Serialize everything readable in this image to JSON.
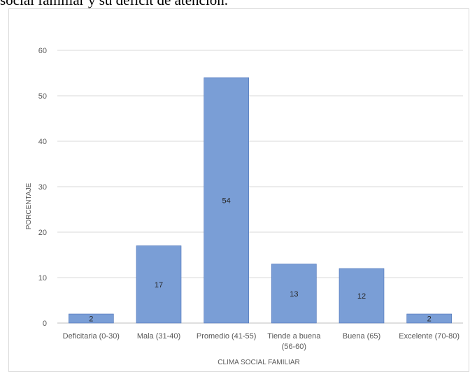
{
  "caption": "social familiar y su déficit de atención.",
  "chart_data": {
    "type": "bar",
    "categories": [
      [
        "Deficitaria (0-30)"
      ],
      [
        "Mala  (31-40)"
      ],
      [
        "Promedio (41-55)"
      ],
      [
        "Tiende a buena",
        "(56-60)"
      ],
      [
        "Buena (65)"
      ],
      [
        "Excelente (70-80)"
      ]
    ],
    "values": [
      2,
      17,
      54,
      13,
      12,
      2
    ],
    "data_labels": [
      "2",
      "17",
      "54",
      "13",
      "12",
      "2"
    ],
    "title": "",
    "xlabel": "CLIMA SOCIAL FAMILIAR",
    "ylabel": "PORCENTAJE",
    "ylim": [
      0,
      60
    ],
    "yticks": [
      0,
      10,
      20,
      30,
      40,
      50,
      60
    ],
    "grid": true,
    "colors": {
      "bar": "#7a9ed6",
      "bar_stroke": "#4a72b8",
      "grid": "#d9d9d9",
      "axis": "#bfbfbf"
    }
  }
}
